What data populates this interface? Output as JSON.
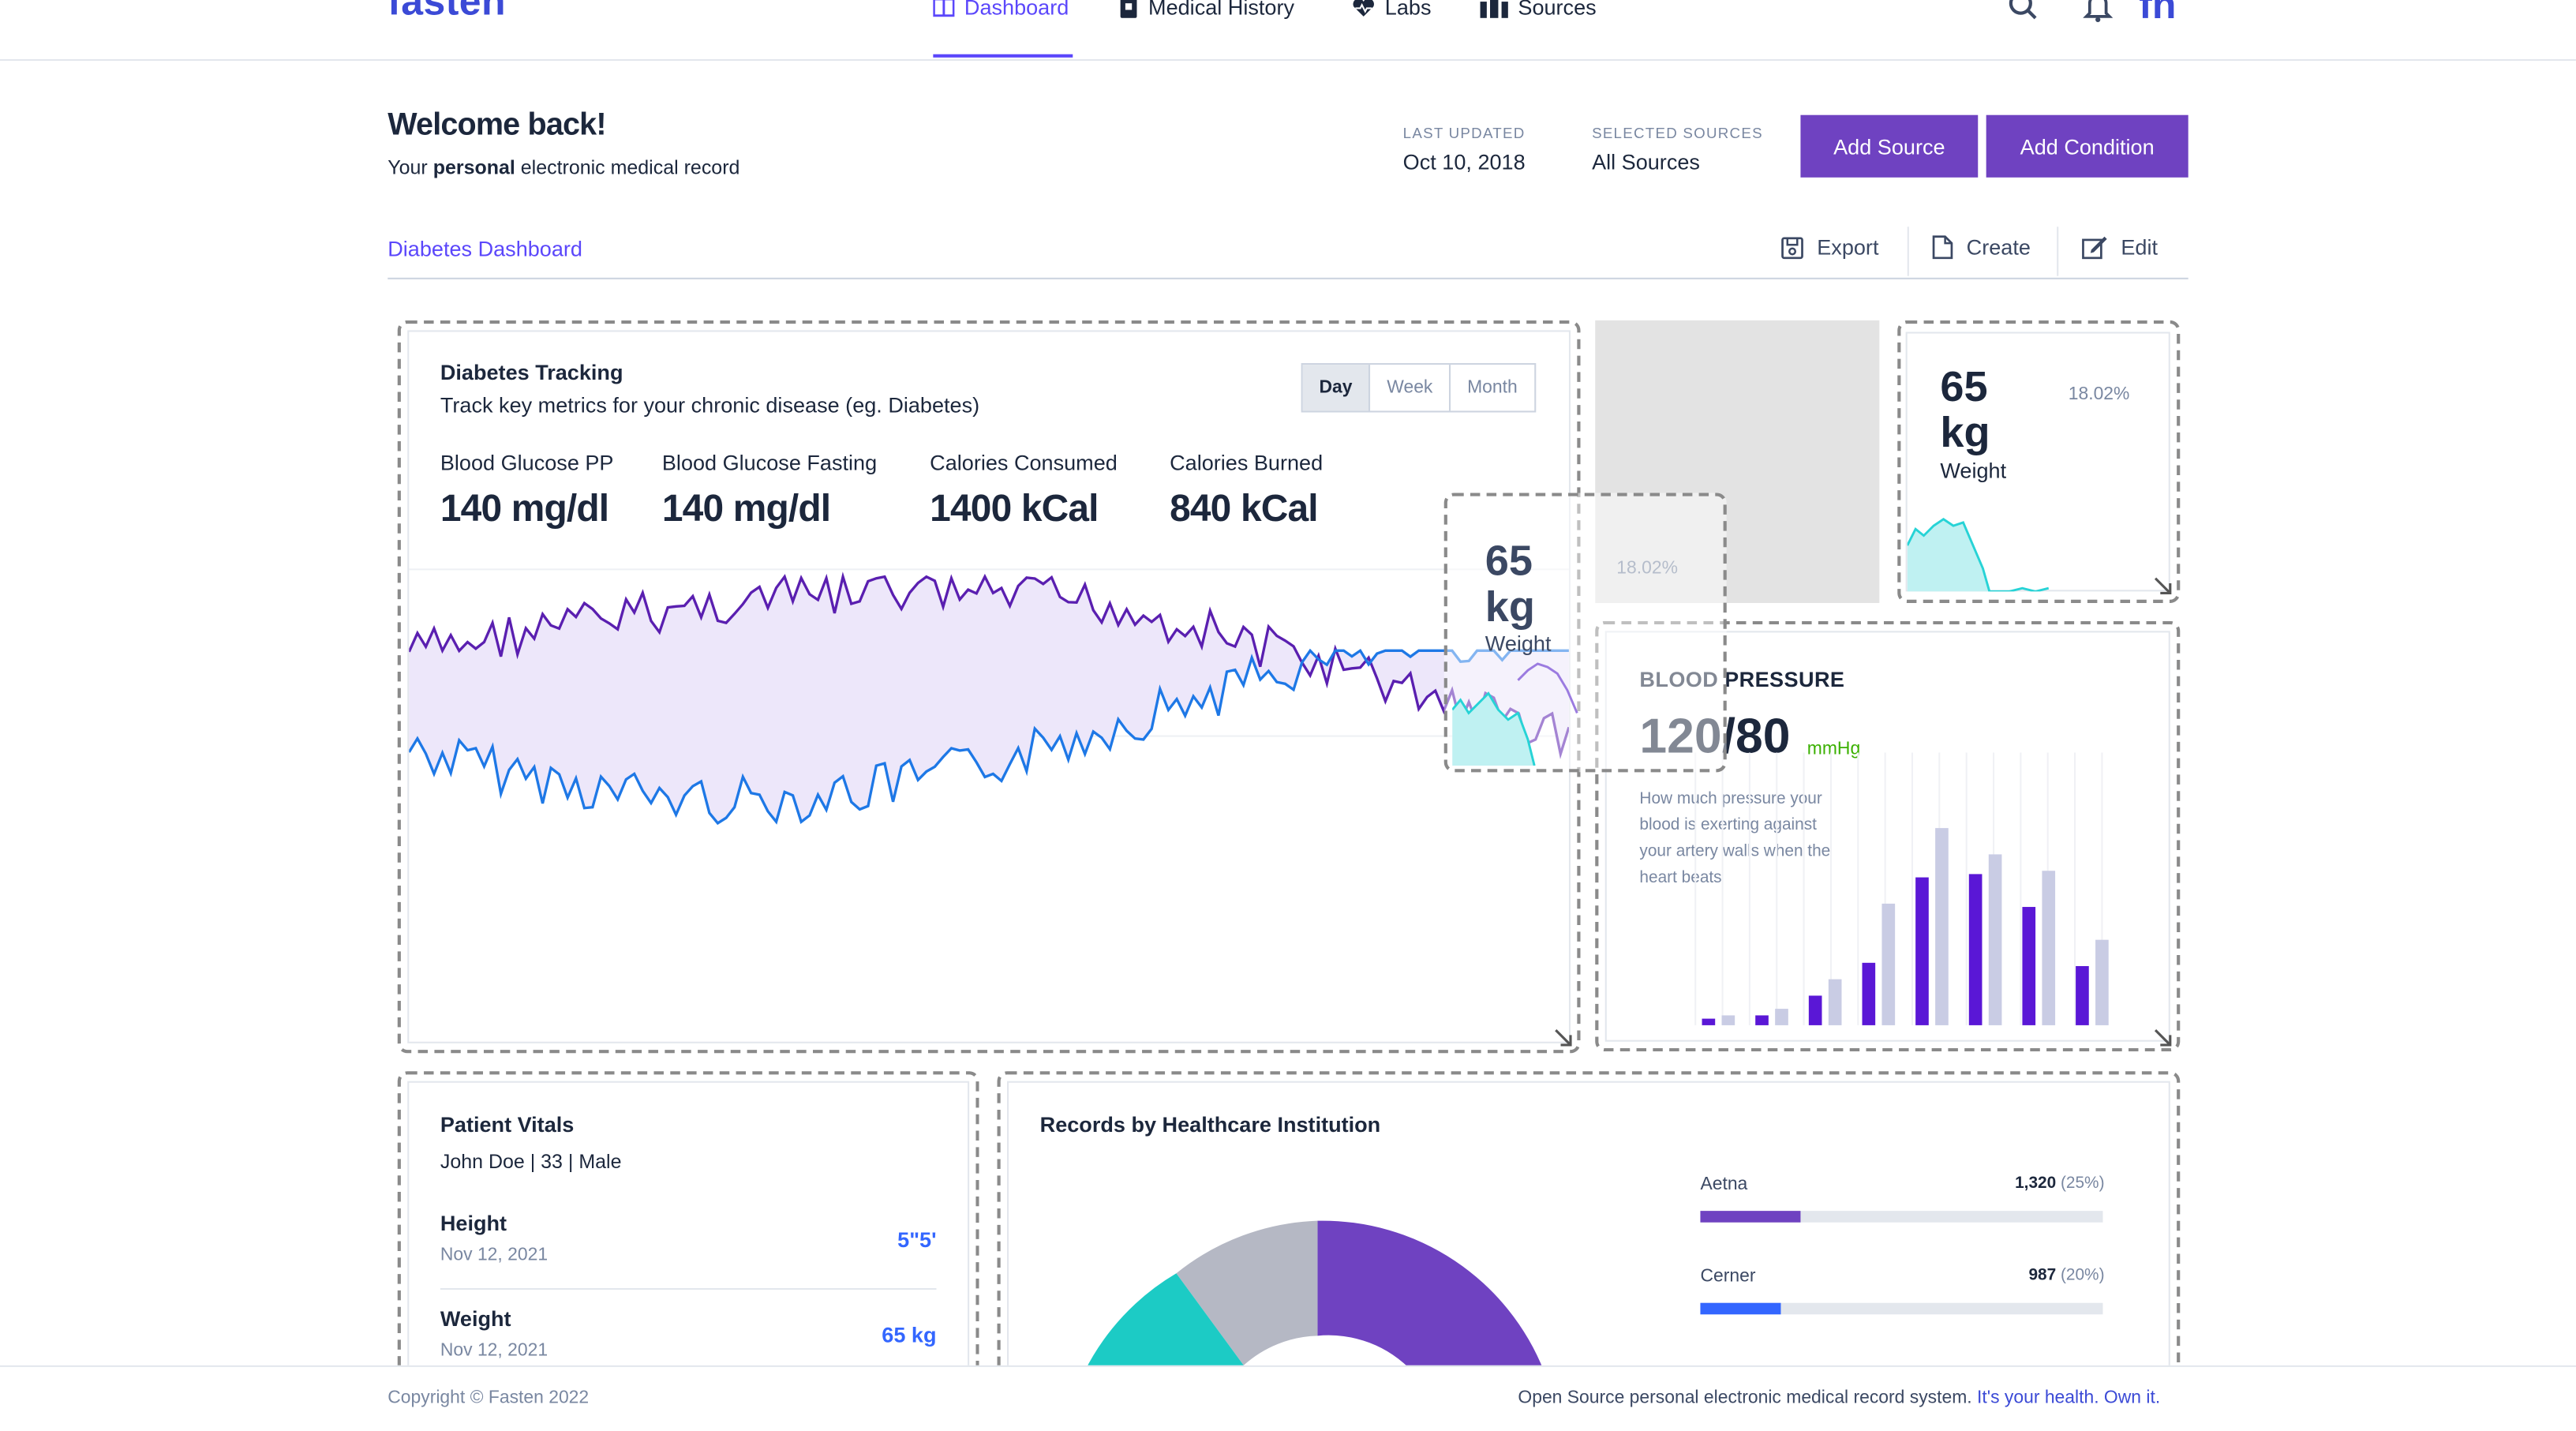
{
  "app": {
    "logo": "fasten"
  },
  "nav": {
    "items": [
      {
        "label": "Dashboard",
        "icon": "dashboard-icon",
        "active": true
      },
      {
        "label": "Medical History",
        "icon": "medical-history-icon"
      },
      {
        "label": "Labs",
        "icon": "heart-pulse-icon"
      },
      {
        "label": "Sources",
        "icon": "sources-icon"
      }
    ],
    "avatar_initials": "fn"
  },
  "welcome": {
    "title": "Welcome back!",
    "subtitle_pre": "Your ",
    "subtitle_bold": "personal",
    "subtitle_post": " electronic medical record"
  },
  "meta": {
    "last_updated_label": "LAST UPDATED",
    "last_updated_value": "Oct 10, 2018",
    "sources_label": "SELECTED SOURCES",
    "sources_value": "All Sources"
  },
  "buttons": {
    "add_source": "Add Source",
    "add_condition": "Add Condition"
  },
  "dashboard": {
    "name": "Diabetes Dashboard",
    "actions": {
      "export": "Export",
      "create": "Create",
      "edit": "Edit"
    }
  },
  "diabetes": {
    "title": "Diabetes Tracking",
    "subtitle": "Track key metrics for your chronic disease (eg. Diabetes)",
    "ranges": [
      "Day",
      "Week",
      "Month"
    ],
    "selected_range": "Day",
    "metrics": [
      {
        "label": "Blood Glucose PP",
        "value": "140 mg/dl"
      },
      {
        "label": "Blood Glucose Fasting",
        "value": "140 mg/dl"
      },
      {
        "label": "Calories Consumed",
        "value": "1400 kCal"
      },
      {
        "label": "Calories Burned",
        "value": "840 kCal"
      }
    ],
    "colors": {
      "series1": "#5a1fb0",
      "series2": "#1e78e6",
      "fill": "#ede7fa"
    }
  },
  "weight_widget": {
    "value": "65",
    "unit": "kg",
    "label": "Weight",
    "change": "18.02%",
    "color": "#27d3d6"
  },
  "floating_weight": {
    "value": "65",
    "unit": "kg",
    "label": "Weight",
    "change": "18.02%"
  },
  "blood_pressure": {
    "title": "BLOOD PRESSURE",
    "value": "120/80",
    "unit": "mmHg",
    "description": "How much pressure your blood is exerting against your artery walls when the heart beats",
    "colors": {
      "primary": "#5a17d6",
      "secondary": "#c9cce4"
    }
  },
  "vitals": {
    "title": "Patient Vitals",
    "patient": "John Doe | 33 | Male",
    "rows": [
      {
        "label": "Height",
        "date": "Nov 12, 2021",
        "value": "5\"5'"
      },
      {
        "label": "Weight",
        "date": "Nov 12, 2021",
        "value": "65 kg"
      }
    ]
  },
  "records": {
    "title": "Records by Healthcare Institution",
    "institutions": [
      {
        "name": "Aetna",
        "count": "1,320",
        "pct": "(25%)",
        "fraction": 0.25,
        "color": "#6f42c1"
      },
      {
        "name": "Cerner",
        "count": "987",
        "pct": "(20%)",
        "fraction": 0.2,
        "color": "#3366ff"
      }
    ],
    "donut_colors": [
      "#6f42c1",
      "#b5b8c4",
      "#1ccbc5"
    ]
  },
  "footer": {
    "copyright": "Copyright © Fasten 2022",
    "tagline": "Open Source personal electronic medical record system. ",
    "tagline_link": "It's your health. Own it."
  }
}
